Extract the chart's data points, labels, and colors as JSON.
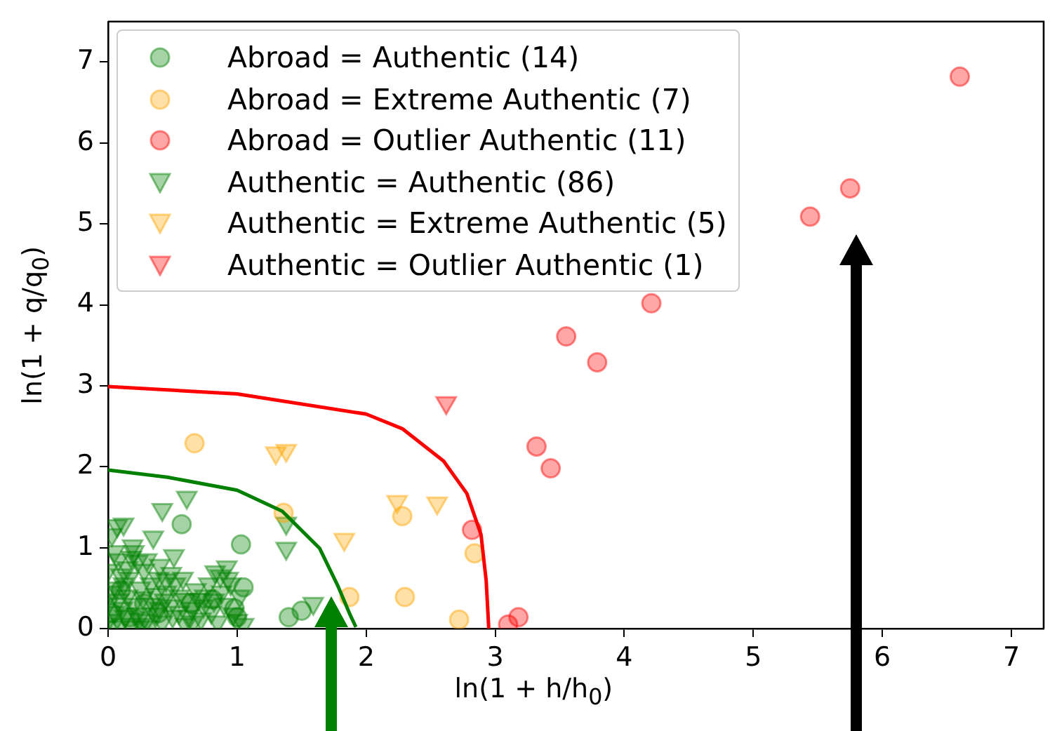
{
  "chart_data": {
    "type": "scatter",
    "xlabel": "ln(1 + h/h$_{0}$)",
    "ylabel": "ln(1 + q/q$_{0}$)",
    "xlim": [
      0,
      7.25
    ],
    "ylim": [
      0,
      7.5
    ],
    "xticks": [
      0,
      1,
      2,
      3,
      4,
      5,
      6,
      7
    ],
    "yticks": [
      0,
      1,
      2,
      3,
      4,
      5,
      6,
      7
    ],
    "grid": false,
    "legend": "top left",
    "series": [
      {
        "name": "Abroad = Authentic (14)",
        "color": "#008000",
        "marker": "circle",
        "x": [
          0.57,
          1.03,
          1.05,
          0.98,
          0.81,
          1.4,
          1.5,
          0.1,
          0.03,
          0.28,
          0.39,
          0.17,
          0.64,
          1.0
        ],
        "values": [
          1.29,
          1.04,
          0.51,
          0.25,
          0.36,
          0.14,
          0.22,
          0.48,
          0.19,
          0.31,
          0.19,
          0.14,
          0.31,
          0.14
        ]
      },
      {
        "name": "Abroad = Extreme Authentic (7)",
        "color": "#ffa500",
        "marker": "circle",
        "x": [
          0.67,
          1.36,
          2.28,
          2.84,
          1.87,
          2.3,
          2.72
        ],
        "values": [
          2.29,
          1.43,
          1.39,
          0.93,
          0.39,
          0.39,
          0.11
        ]
      },
      {
        "name": "Abroad = Outlier Authentic (11)",
        "color": "#ff0000",
        "marker": "circle",
        "x": [
          6.6,
          5.75,
          5.44,
          4.21,
          3.55,
          3.79,
          3.32,
          3.43,
          2.82,
          3.1,
          3.18
        ],
        "values": [
          6.82,
          5.44,
          5.09,
          4.02,
          3.61,
          3.29,
          2.25,
          1.98,
          1.22,
          0.05,
          0.14
        ]
      },
      {
        "name": "Authentic = Authentic (86)",
        "color": "#008000",
        "marker": "triangle",
        "x": [
          0.61,
          0.42,
          1.38,
          1.38,
          0.07,
          0.12,
          0.03,
          0.19,
          0.35,
          0.51,
          0.23,
          0.18,
          0.92,
          0.87,
          0.83,
          1.59,
          0.49,
          0.39,
          0.1,
          0.0,
          0.6,
          0.7,
          0.65,
          0.05,
          0.15,
          0.28,
          0.33,
          0.25,
          0.45,
          0.55,
          0.75,
          0.8,
          0.9,
          0.95,
          1.0,
          1.05,
          0.85,
          0.72,
          0.6,
          0.5,
          0.42,
          0.35,
          0.3,
          0.2,
          0.22,
          0.15,
          0.12,
          0.08,
          0.05,
          0.02,
          0.0,
          0.0,
          0.03,
          0.1,
          0.18,
          0.25,
          0.32,
          0.4,
          0.48,
          0.55,
          0.62,
          0.68,
          0.78,
          0.88,
          0.97,
          0.13,
          0.27,
          0.37,
          0.08,
          0.16,
          0.06,
          0.2,
          0.3,
          0.4,
          0.45,
          0.52,
          0.58,
          0.66,
          0.74,
          0.82,
          0.93,
          1.02,
          0.11,
          0.24,
          0.36,
          0.44
        ],
        "values": [
          1.62,
          1.47,
          1.3,
          0.99,
          1.27,
          1.29,
          1.16,
          1.02,
          1.13,
          0.9,
          0.83,
          0.88,
          0.76,
          0.65,
          0.7,
          0.31,
          0.68,
          0.62,
          0.66,
          0.72,
          0.36,
          0.36,
          0.25,
          0.95,
          0.75,
          0.72,
          0.55,
          0.5,
          0.45,
          0.4,
          0.4,
          0.2,
          0.3,
          0.55,
          0.1,
          0.05,
          0.08,
          0.12,
          0.05,
          0.15,
          0.08,
          0.3,
          0.1,
          0.3,
          0.18,
          0.4,
          0.55,
          0.35,
          0.2,
          0.45,
          0.3,
          0.1,
          0.02,
          0.05,
          0.02,
          0.05,
          0.02,
          0.25,
          0.28,
          0.2,
          0.15,
          0.48,
          0.55,
          0.45,
          0.18,
          0.15,
          0.38,
          0.42,
          0.85,
          0.62,
          0.5,
          0.95,
          0.85,
          0.78,
          0.6,
          0.55,
          0.62,
          0.08,
          0.28,
          0.35,
          0.62,
          0.4,
          0.25,
          0.12,
          0.18,
          0.35
        ]
      },
      {
        "name": "Authentic = Extreme Authentic (5)",
        "color": "#ffa500",
        "marker": "triangle",
        "x": [
          1.3,
          1.38,
          2.24,
          2.55,
          1.83
        ],
        "values": [
          2.17,
          2.2,
          1.57,
          1.55,
          1.1
        ]
      },
      {
        "name": "Authentic = Outlier Authentic (1)",
        "color": "#ff0000",
        "marker": "triangle",
        "x": [
          2.62
        ],
        "values": [
          2.79
        ]
      },
      {
        "type": "line",
        "color": "#008000",
        "marker": "none",
        "x": [
          0,
          0.46,
          1.0,
          1.35,
          1.64,
          1.78,
          1.87,
          1.92
        ],
        "values": [
          1.96,
          1.87,
          1.71,
          1.45,
          0.99,
          0.53,
          0.19,
          0.02
        ]
      },
      {
        "type": "line",
        "color": "#ff0000",
        "marker": "none",
        "x": [
          0,
          1.0,
          2.0,
          2.28,
          2.6,
          2.78,
          2.89,
          2.93,
          2.95
        ],
        "values": [
          2.99,
          2.9,
          2.65,
          2.47,
          2.07,
          1.67,
          1.16,
          0.59,
          0
        ]
      }
    ]
  }
}
